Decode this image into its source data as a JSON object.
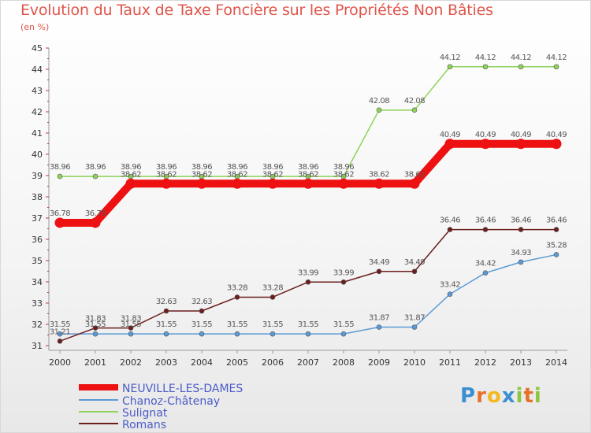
{
  "chart_data": {
    "type": "line",
    "title": "Evolution du Taux de Taxe Foncière sur les Propriétés Non Bâties",
    "unit": "(en %)",
    "x": [
      2000,
      2001,
      2002,
      2003,
      2004,
      2005,
      2006,
      2007,
      2008,
      2009,
      2010,
      2011,
      2012,
      2013,
      2014
    ],
    "ylim": [
      31,
      45
    ],
    "yticks": [
      31,
      32,
      33,
      34,
      35,
      36,
      37,
      38,
      39,
      40,
      41,
      42,
      43,
      44,
      45
    ],
    "series": [
      {
        "name": "NEUVILLE-LES-DAMES",
        "color": "#ee1111",
        "values": [
          36.78,
          36.78,
          38.62,
          38.62,
          38.62,
          38.62,
          38.62,
          38.62,
          38.62,
          38.62,
          38.62,
          40.49,
          40.49,
          40.49,
          40.49
        ]
      },
      {
        "name": "Chanoz-Châtenay",
        "color": "#5b9bd5",
        "values": [
          31.55,
          31.55,
          31.55,
          31.55,
          31.55,
          31.55,
          31.55,
          31.55,
          31.55,
          31.87,
          31.87,
          33.42,
          34.42,
          34.93,
          35.28
        ]
      },
      {
        "name": "Sulignat",
        "color": "#8fd35a",
        "values": [
          38.96,
          38.96,
          38.96,
          38.96,
          38.96,
          38.96,
          38.96,
          38.96,
          38.96,
          42.08,
          42.08,
          44.12,
          44.12,
          44.12,
          44.12
        ]
      },
      {
        "name": "Romans",
        "color": "#6b1e1e",
        "values": [
          31.21,
          31.83,
          31.83,
          32.63,
          32.63,
          33.28,
          33.28,
          33.99,
          33.99,
          34.49,
          34.49,
          36.46,
          36.46,
          36.46,
          36.46
        ]
      }
    ],
    "grid": false,
    "legend_position": "bottom-left"
  },
  "logo": {
    "letters": [
      {
        "ch": "P",
        "color": "#3a8fd0"
      },
      {
        "ch": "r",
        "color": "#e8702a"
      },
      {
        "ch": "o",
        "color": "#f2b81f"
      },
      {
        "ch": "x",
        "color": "#3a8fd0"
      },
      {
        "ch": "i",
        "color": "#8cc63f"
      },
      {
        "ch": "t",
        "color": "#e8702a"
      },
      {
        "ch": "i",
        "color": "#8cc63f"
      }
    ]
  }
}
